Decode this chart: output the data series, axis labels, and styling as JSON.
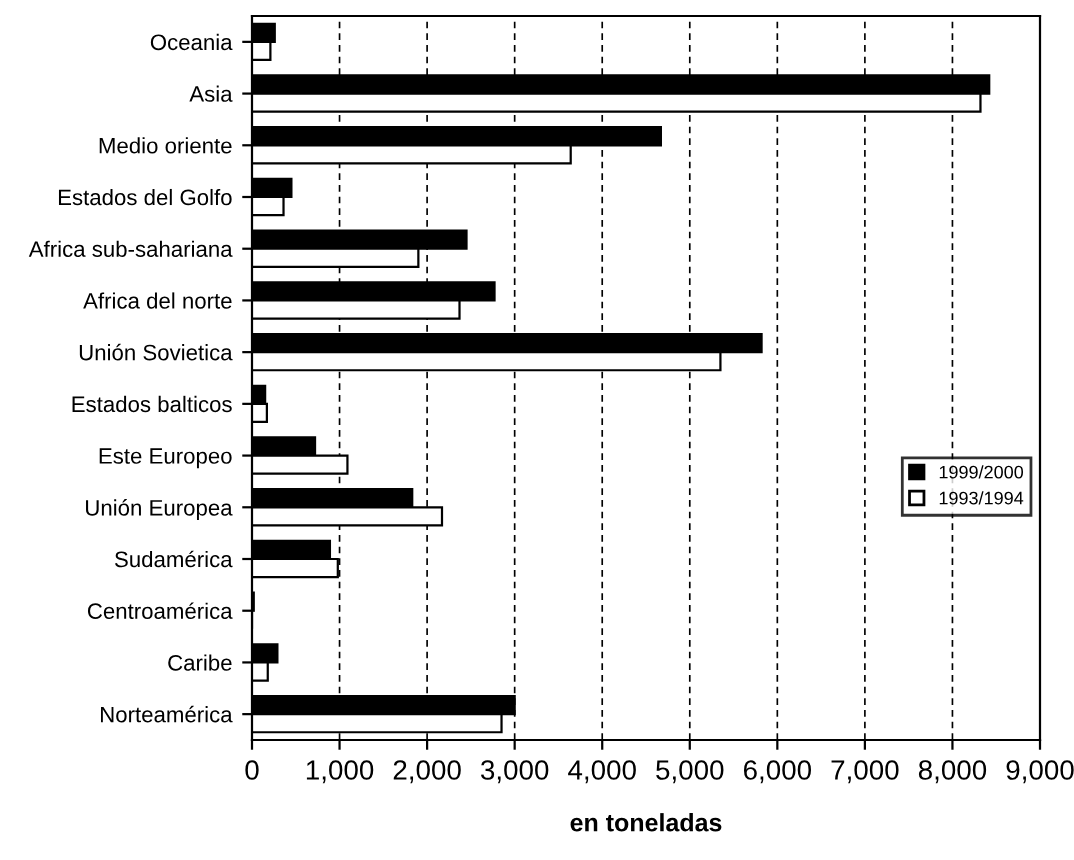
{
  "chart_data": {
    "type": "bar",
    "orientation": "horizontal",
    "xlabel": "en toneladas",
    "categories": [
      "Oceania",
      "Asia",
      "Medio oriente",
      "Estados del Golfo",
      "Africa sub-sahariana",
      "Africa del norte",
      "Unión Sovietica",
      "Estados balticos",
      "Este Europeo",
      "Unión Europea",
      "Sudamérica",
      "Centroamérica",
      "Caribe",
      "Norteamérica"
    ],
    "series": [
      {
        "name": "1999/2000",
        "color": "#000000",
        "values": [
          260,
          8420,
          4670,
          450,
          2450,
          2770,
          5820,
          150,
          720,
          1830,
          890,
          20,
          290,
          3000
        ]
      },
      {
        "name": "1993/1994",
        "color": "#ffffff",
        "values": [
          210,
          8320,
          3640,
          360,
          1900,
          2370,
          5350,
          170,
          1090,
          2170,
          980,
          null,
          180,
          2850
        ]
      }
    ],
    "xlim": [
      0,
      9000
    ],
    "xticks": [
      {
        "value": 0,
        "label": "0"
      },
      {
        "value": 1000,
        "label": "1,000"
      },
      {
        "value": 2000,
        "label": "2,000"
      },
      {
        "value": 3000,
        "label": "3,000"
      },
      {
        "value": 4000,
        "label": "4,000"
      },
      {
        "value": 5000,
        "label": "5,000"
      },
      {
        "value": 6000,
        "label": "6,000"
      },
      {
        "value": 7000,
        "label": "7,000"
      },
      {
        "value": 8000,
        "label": "8,000"
      },
      {
        "value": 9000,
        "label": "9,000"
      }
    ],
    "grid": "x",
    "legend": "right"
  }
}
